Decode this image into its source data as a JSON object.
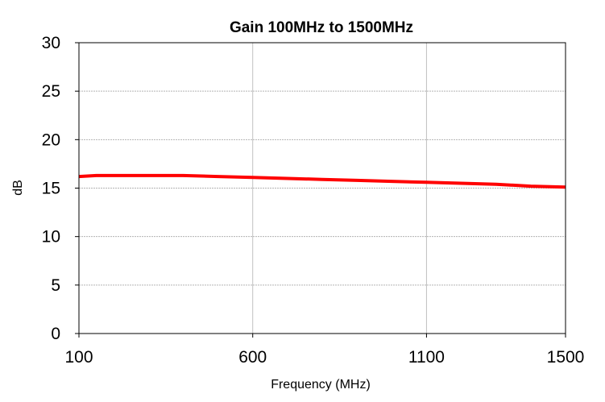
{
  "chart_data": {
    "type": "line",
    "title": "Gain 100MHz to 1500MHz",
    "xlabel": "Frequency (MHz)",
    "ylabel": "dB",
    "xlim": [
      100,
      1500
    ],
    "ylim": [
      0,
      30
    ],
    "x_ticks": [
      100,
      600,
      1100,
      1500
    ],
    "y_ticks": [
      0,
      5,
      10,
      15,
      20,
      25,
      30
    ],
    "grid": true,
    "legend": "none",
    "series": [
      {
        "color": "#ff0000",
        "x": [
          100,
          150,
          200,
          300,
          400,
          500,
          600,
          700,
          800,
          900,
          1000,
          1100,
          1200,
          1300,
          1400,
          1500
        ],
        "y": [
          16.2,
          16.3,
          16.3,
          16.3,
          16.3,
          16.2,
          16.1,
          16.0,
          15.9,
          15.8,
          15.7,
          15.6,
          15.5,
          15.4,
          15.2,
          15.1
        ]
      }
    ]
  }
}
